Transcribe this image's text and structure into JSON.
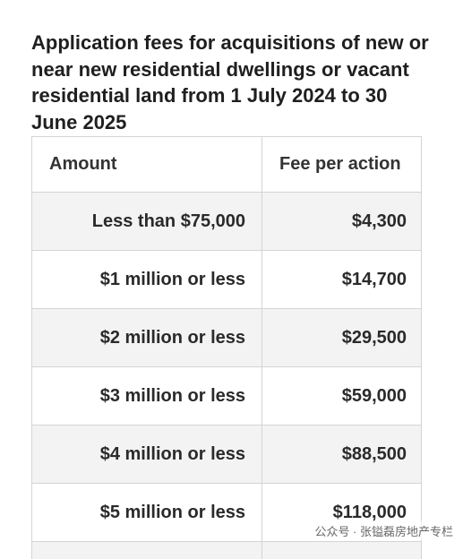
{
  "header": {
    "title": "Application fees for acquisitions of new or near new residential dwellings or vacant residential land from 1 July 2024 to 30 June 2025"
  },
  "table": {
    "columns": [
      "Amount",
      "Fee per action"
    ],
    "rows": [
      [
        "Less than $75,000",
        "$4,300"
      ],
      [
        "$1 million or less",
        "$14,700"
      ],
      [
        "$2 million or less",
        "$29,500"
      ],
      [
        "$3 million or less",
        "$59,000"
      ],
      [
        "$4 million or less",
        "$88,500"
      ],
      [
        "$5 million or less",
        "$118,000"
      ]
    ]
  },
  "watermark": "公众号 · 张镒磊房地产专栏"
}
